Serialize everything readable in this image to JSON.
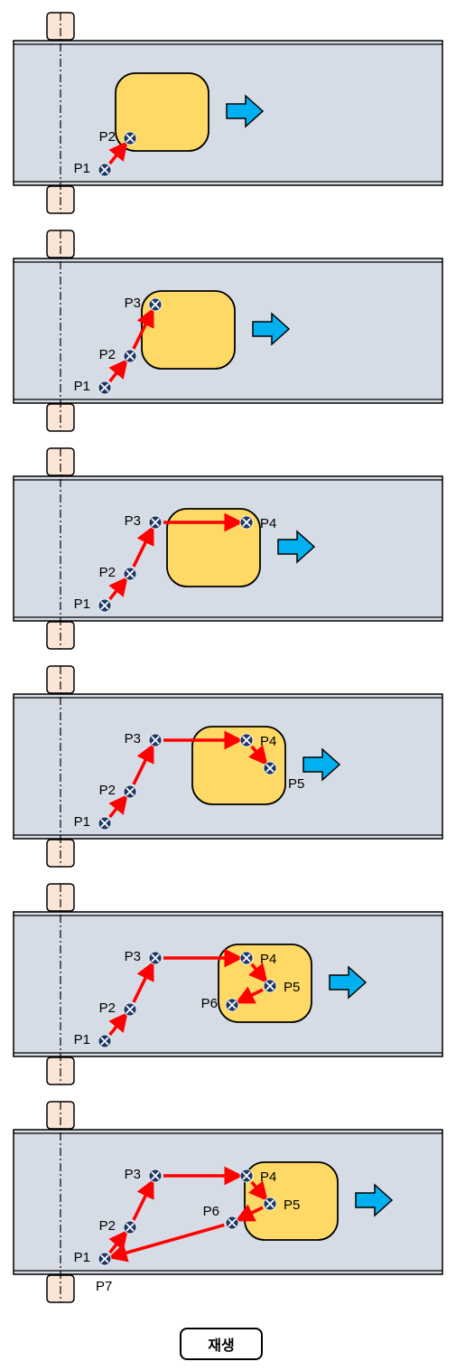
{
  "play_button_label": "재생",
  "colors": {
    "belt": "#D6DCE5",
    "belt_border": "#000000",
    "workpiece": "#FFD966",
    "direction_arrow": "#00B0F0",
    "path_arrow": "#FF0000",
    "point_fill": "#1F3864",
    "roller": "#FBE5D6"
  },
  "icons": {
    "point": "crossed-circle-icon",
    "direction": "right-arrow-icon"
  },
  "steps": [
    {
      "points": [
        {
          "label": "P1",
          "pos": "left"
        },
        {
          "label": "P2",
          "pos": "left"
        }
      ]
    },
    {
      "points": [
        {
          "label": "P1",
          "pos": "left"
        },
        {
          "label": "P2",
          "pos": "left"
        },
        {
          "label": "P3",
          "pos": "left"
        }
      ]
    },
    {
      "points": [
        {
          "label": "P1",
          "pos": "left"
        },
        {
          "label": "P2",
          "pos": "left"
        },
        {
          "label": "P3",
          "pos": "left"
        },
        {
          "label": "P4",
          "pos": "right"
        }
      ]
    },
    {
      "points": [
        {
          "label": "P1",
          "pos": "left"
        },
        {
          "label": "P2",
          "pos": "left"
        },
        {
          "label": "P3",
          "pos": "left"
        },
        {
          "label": "P4",
          "pos": "right"
        },
        {
          "label": "P5",
          "pos": "below-right"
        }
      ]
    },
    {
      "points": [
        {
          "label": "P1",
          "pos": "left"
        },
        {
          "label": "P2",
          "pos": "left"
        },
        {
          "label": "P3",
          "pos": "left"
        },
        {
          "label": "P4",
          "pos": "right"
        },
        {
          "label": "P5",
          "pos": "right"
        },
        {
          "label": "P6",
          "pos": "left"
        }
      ]
    },
    {
      "points": [
        {
          "label": "P1",
          "pos": "left"
        },
        {
          "label": "P2",
          "pos": "left"
        },
        {
          "label": "P3",
          "pos": "left"
        },
        {
          "label": "P4",
          "pos": "right"
        },
        {
          "label": "P5",
          "pos": "right"
        },
        {
          "label": "P6",
          "pos": "above-left"
        }
      ],
      "extra_label": "P7"
    }
  ]
}
